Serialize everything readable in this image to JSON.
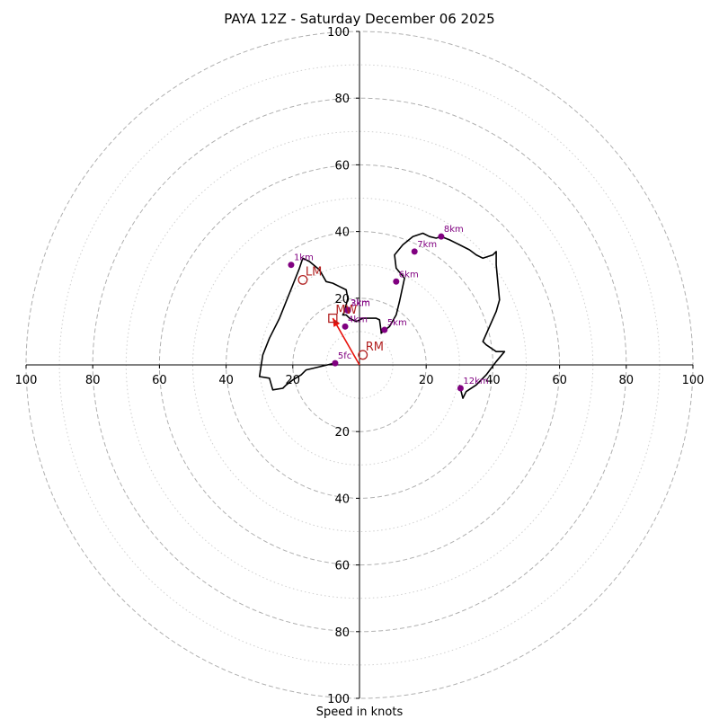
{
  "chart_data": {
    "type": "hodograph",
    "title": "PAYA 12Z - Saturday December 06 2025",
    "xlabel": "Speed in knots",
    "range": [
      -100,
      100
    ],
    "ring_major": [
      20,
      40,
      60,
      80,
      100
    ],
    "ring_minor": [
      10,
      30,
      50,
      70,
      90
    ],
    "tick_labels": {
      "x": [
        "100",
        "80",
        "60",
        "40",
        "20",
        "20",
        "40",
        "60",
        "80",
        "100"
      ],
      "y_top": [
        "100",
        "80",
        "60",
        "40",
        "20"
      ],
      "y_bottom": [
        "20",
        "40",
        "60",
        "80",
        "100"
      ]
    },
    "colors": {
      "trace": "#000000",
      "height_marker": "#800080",
      "storm": "#b22222",
      "shear": "#e8120c",
      "ring": "#b0b0b0"
    },
    "trace": {
      "u": [
        -7.5,
        -16,
        -17.5,
        -20,
        -22,
        -23,
        -26,
        -27,
        -30,
        -29,
        -27,
        -24,
        -22,
        -20,
        -18,
        -17,
        -15,
        -12,
        -10,
        -8,
        -6,
        -4,
        -3.5,
        -4.5,
        -5,
        -4,
        -3,
        -1,
        1,
        3,
        5,
        6,
        6.5,
        6.5,
        7,
        9,
        11,
        12,
        13.5,
        11,
        10.5,
        13,
        16,
        19,
        21,
        23,
        24.5,
        27,
        30,
        33,
        35,
        37,
        40,
        41,
        41,
        41.5,
        42,
        41,
        37,
        38,
        41,
        43.5,
        41,
        38,
        35,
        32,
        31,
        30
      ],
      "v": [
        0.5,
        -1.5,
        -3,
        -4.5,
        -6,
        -7,
        -7.5,
        -4,
        -3.5,
        3,
        8,
        14,
        19,
        24,
        29,
        32,
        31,
        28.5,
        25,
        24.5,
        23.5,
        22.5,
        20,
        16,
        15,
        15,
        14,
        13,
        14,
        14,
        14,
        13.5,
        10,
        9.5,
        10,
        11.5,
        15,
        19,
        26,
        29,
        33,
        36,
        38.5,
        39.5,
        38.5,
        38,
        38.5,
        37.5,
        36,
        34.5,
        33,
        32,
        33,
        34,
        30,
        24.5,
        19.5,
        16,
        7,
        6,
        4,
        4,
        1,
        -3,
        -6,
        -8,
        -10,
        -6
      ]
    },
    "height_markers": [
      {
        "label": "5fc",
        "u": -7.3,
        "v": 0.5
      },
      {
        "label": "1km",
        "u": -20.5,
        "v": 30
      },
      {
        "label": "2km",
        "u": -3.5,
        "v": 16.5
      },
      {
        "label": "3km",
        "u": -3.5,
        "v": 16.3
      },
      {
        "label": "4km",
        "u": -4.3,
        "v": 11.5
      },
      {
        "label": "5km",
        "u": 7.5,
        "v": 10.5
      },
      {
        "label": "6km",
        "u": 11,
        "v": 25
      },
      {
        "label": "7km",
        "u": 16.5,
        "v": 34
      },
      {
        "label": "8km",
        "u": 24.5,
        "v": 38.5
      },
      {
        "label": "12km",
        "u": 30.3,
        "v": -7
      }
    ],
    "storm_motion": [
      {
        "label": "LM",
        "u": -17,
        "v": 25.5,
        "marker": "circle"
      },
      {
        "label": "MW",
        "u": -8,
        "v": 14,
        "marker": "square"
      },
      {
        "label": "RM",
        "u": 1,
        "v": 3,
        "marker": "circle"
      }
    ],
    "shear_vector": {
      "from_u": 0,
      "from_v": 0,
      "to_u": -8,
      "to_v": 14
    }
  }
}
